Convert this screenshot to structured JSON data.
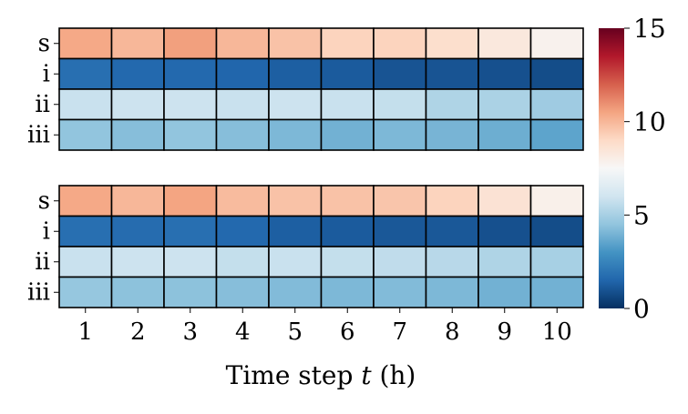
{
  "chart_data": {
    "type": "heatmap",
    "xlabel": "Time step t (h)",
    "xticks": [
      "1",
      "2",
      "3",
      "4",
      "5",
      "6",
      "7",
      "8",
      "9",
      "10"
    ],
    "yticks": [
      "s",
      "i",
      "ii",
      "iii"
    ],
    "colorbar": {
      "min": 0,
      "max": 15,
      "ticks": [
        "0",
        "5",
        "10",
        "15"
      ],
      "colormap": "RdBu_r",
      "stops": [
        "#053061",
        "#2166ac",
        "#4393c3",
        "#92c5de",
        "#d1e5f0",
        "#f7f7f7",
        "#fddbc7",
        "#f4a582",
        "#d6604d",
        "#b2182b",
        "#67001f"
      ]
    },
    "panels": [
      {
        "rows": [
          {
            "label": "s",
            "values": [
              10.4,
              10.0,
              10.6,
              10.0,
              9.7,
              9.2,
              9.2,
              8.8,
              8.3,
              7.8
            ]
          },
          {
            "label": "i",
            "values": [
              1.8,
              1.6,
              1.6,
              1.5,
              1.3,
              1.2,
              1.0,
              1.0,
              0.9,
              0.8
            ]
          },
          {
            "label": "ii",
            "values": [
              5.8,
              5.9,
              5.9,
              5.8,
              5.9,
              5.8,
              5.7,
              5.2,
              5.1,
              4.8
            ]
          },
          {
            "label": "iii",
            "values": [
              4.5,
              4.3,
              4.5,
              4.3,
              4.1,
              3.9,
              4.1,
              4.0,
              3.8,
              3.5
            ]
          }
        ]
      },
      {
        "rows": [
          {
            "label": "s",
            "values": [
              10.4,
              10.0,
              10.5,
              9.9,
              9.7,
              9.7,
              9.6,
              9.2,
              8.6,
              7.9
            ]
          },
          {
            "label": "i",
            "values": [
              1.8,
              1.7,
              1.8,
              1.6,
              1.3,
              1.2,
              1.1,
              1.1,
              0.9,
              0.8
            ]
          },
          {
            "label": "ii",
            "values": [
              5.8,
              5.9,
              5.9,
              5.7,
              5.8,
              5.7,
              5.6,
              5.4,
              5.2,
              5.0
            ]
          },
          {
            "label": "iii",
            "values": [
              4.6,
              4.4,
              4.4,
              4.3,
              4.2,
              4.1,
              4.2,
              4.1,
              3.9,
              3.9
            ]
          }
        ]
      }
    ]
  }
}
